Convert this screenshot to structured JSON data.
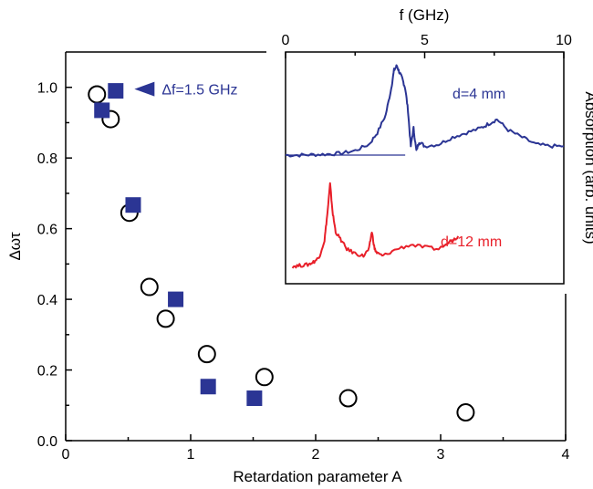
{
  "chart_data": [
    {
      "type": "scatter",
      "xlabel": "Retardation parameter A",
      "ylabel": "Δωτ",
      "xlim": [
        0,
        4
      ],
      "ylim": [
        0,
        1.1
      ],
      "xticks": [
        0,
        1,
        2,
        3,
        4
      ],
      "yticks": [
        0.0,
        0.2,
        0.4,
        0.6,
        0.8,
        1.0
      ],
      "xtick_labels": [
        "0",
        "1",
        "2",
        "3",
        "4"
      ],
      "ytick_labels": [
        "0.0",
        "0.2",
        "0.4",
        "0.6",
        "0.8",
        "1.0"
      ],
      "series": [
        {
          "marker": "open-circle",
          "color": "#000000",
          "points": [
            [
              0.25,
              0.98
            ],
            [
              0.36,
              0.91
            ],
            [
              0.51,
              0.645
            ],
            [
              0.67,
              0.435
            ],
            [
              0.8,
              0.345
            ],
            [
              1.13,
              0.245
            ],
            [
              1.59,
              0.18
            ],
            [
              2.26,
              0.12
            ],
            [
              3.2,
              0.08
            ]
          ]
        },
        {
          "marker": "filled-square",
          "color": "#2b3594",
          "points": [
            [
              0.29,
              0.935
            ],
            [
              0.4,
              0.99
            ],
            [
              0.54,
              0.667
            ],
            [
              0.88,
              0.4
            ],
            [
              1.14,
              0.153
            ],
            [
              1.51,
              0.12
            ]
          ]
        }
      ],
      "annotation": {
        "text": "Δf=1.5 GHz",
        "arrow": "filled-triangle-left",
        "color": "#2b3594",
        "points_to": [
          0.55,
          0.995
        ]
      }
    },
    {
      "type": "line",
      "role": "inset",
      "xlabel": "f (GHz)",
      "ylabel": "Absorption (arb. units)",
      "xlim": [
        0,
        10
      ],
      "xticks": [
        0,
        5,
        10
      ],
      "xtick_labels": [
        "0",
        "5",
        "10"
      ],
      "grid": false,
      "series": [
        {
          "label": "d=4 mm",
          "color": "#2b3594",
          "x": [
            0.0,
            0.5,
            1.0,
            1.5,
            2.0,
            2.5,
            3.0,
            3.3,
            3.6,
            3.8,
            3.9,
            4.0,
            4.1,
            4.2,
            4.3,
            4.4,
            4.5,
            4.6,
            4.7,
            4.8,
            5.0,
            5.5,
            6.0,
            6.5,
            7.0,
            7.3,
            7.6,
            8.0,
            8.5,
            9.0,
            9.5,
            10.0
          ],
          "y": [
            0.0,
            0.0,
            0.005,
            0.01,
            0.02,
            0.05,
            0.12,
            0.25,
            0.45,
            0.75,
            0.95,
            1.0,
            0.92,
            0.85,
            0.75,
            0.5,
            0.1,
            0.3,
            0.05,
            0.15,
            0.1,
            0.12,
            0.2,
            0.25,
            0.3,
            0.35,
            0.4,
            0.28,
            0.2,
            0.12,
            0.1,
            0.1
          ]
        },
        {
          "label": "d=12 mm",
          "color": "#e8202a",
          "x": [
            0.25,
            0.5,
            0.8,
            1.0,
            1.2,
            1.4,
            1.5,
            1.6,
            1.7,
            1.8,
            2.0,
            2.2,
            2.5,
            2.8,
            3.0,
            3.1,
            3.2,
            3.3,
            3.5,
            4.0,
            4.5,
            5.0,
            5.5,
            6.0,
            6.2
          ],
          "y": [
            0.0,
            0.01,
            0.02,
            0.05,
            0.1,
            0.3,
            0.6,
            0.95,
            0.6,
            0.4,
            0.3,
            0.2,
            0.15,
            0.12,
            0.2,
            0.4,
            0.2,
            0.15,
            0.12,
            0.2,
            0.25,
            0.22,
            0.2,
            0.3,
            0.35
          ]
        }
      ]
    }
  ]
}
